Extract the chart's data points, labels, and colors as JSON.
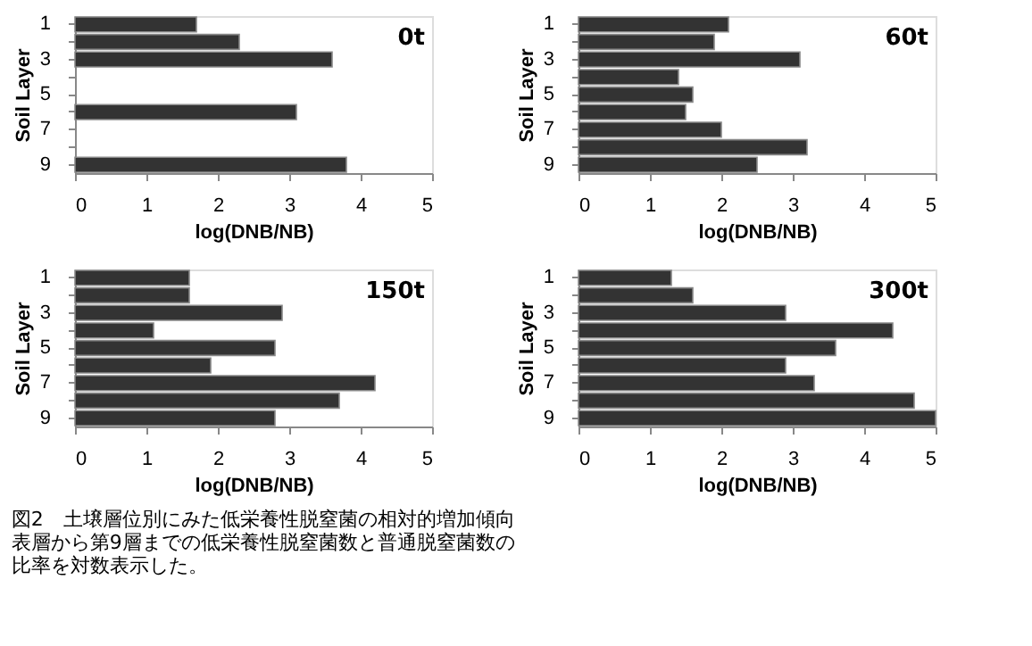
{
  "chart_data": [
    {
      "type": "bar",
      "orientation": "horizontal",
      "title": "0t",
      "categories": [
        "1",
        null,
        "3",
        null,
        "5",
        null,
        "7",
        null,
        "9"
      ],
      "values": [
        1.7,
        2.3,
        3.6,
        null,
        null,
        3.1,
        null,
        null,
        3.8
      ],
      "color": "#333333",
      "xlim": [
        0,
        5
      ],
      "xticks": [
        0,
        1,
        2,
        3,
        4,
        5
      ],
      "xlabel": "log(DNB/NB)",
      "ylabel": "Soil Layer",
      "grid": false
    },
    {
      "type": "bar",
      "orientation": "horizontal",
      "title": "60t",
      "categories": [
        "1",
        null,
        "3",
        null,
        "5",
        null,
        "7",
        null,
        "9"
      ],
      "values": [
        2.1,
        1.9,
        3.1,
        1.4,
        1.6,
        1.5,
        2.0,
        3.2,
        2.5
      ],
      "color": "#333333",
      "xlim": [
        0,
        5
      ],
      "xticks": [
        0,
        1,
        2,
        3,
        4,
        5
      ],
      "xlabel": "log(DNB/NB)",
      "ylabel": "Soil Layer",
      "grid": false
    },
    {
      "type": "bar",
      "orientation": "horizontal",
      "title": "150t",
      "categories": [
        "1",
        null,
        "3",
        null,
        "5",
        null,
        "7",
        null,
        "9"
      ],
      "values": [
        1.6,
        1.6,
        2.9,
        1.1,
        2.8,
        1.9,
        4.2,
        3.7,
        2.8
      ],
      "color": "#333333",
      "xlim": [
        0,
        5
      ],
      "xticks": [
        0,
        1,
        2,
        3,
        4,
        5
      ],
      "xlabel": "log(DNB/NB)",
      "ylabel": "Soil Layer",
      "grid": false
    },
    {
      "type": "bar",
      "orientation": "horizontal",
      "title": "300t",
      "categories": [
        "1",
        null,
        "3",
        null,
        "5",
        null,
        "7",
        null,
        "9"
      ],
      "values": [
        1.3,
        1.6,
        2.9,
        4.4,
        3.6,
        2.9,
        3.3,
        4.7,
        5.0
      ],
      "color": "#333333",
      "xlim": [
        0,
        5
      ],
      "xticks": [
        0,
        1,
        2,
        3,
        4,
        5
      ],
      "xlabel": "log(DNB/NB)",
      "ylabel": "Soil Layer",
      "grid": false,
      "annotations": [
        "図2　土壌層位別にみた低栄養性脱窒菌の相対的増加傾向",
        "　　表層から第9層までの低栄養性脱窒菌数と普通脱窒菌数の",
        "　比率を対数表示した。"
      ]
    }
  ]
}
